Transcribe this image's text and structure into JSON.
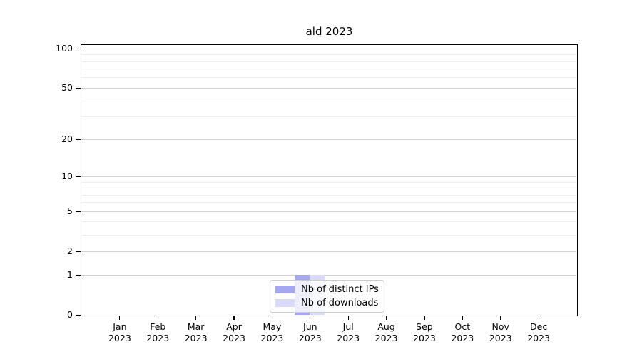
{
  "title": "ald 2023",
  "chart_data": {
    "type": "bar",
    "title": "ald 2023",
    "xlabel": "",
    "ylabel": "",
    "yscale": "symlog (log10(1+v))",
    "ylim": [
      0,
      110
    ],
    "grid": true,
    "legend_position": "lower center",
    "yticks": [
      0,
      1,
      2,
      5,
      10,
      20,
      50,
      100
    ],
    "yticks_minor": [
      3,
      4,
      6,
      7,
      8,
      9,
      30,
      40,
      60,
      70,
      80,
      90
    ],
    "xticklabels": [
      [
        "Jan",
        "2023"
      ],
      [
        "Feb",
        "2023"
      ],
      [
        "Mar",
        "2023"
      ],
      [
        "Apr",
        "2023"
      ],
      [
        "May",
        "2023"
      ],
      [
        "Jun",
        "2023"
      ],
      [
        "Jul",
        "2023"
      ],
      [
        "Aug",
        "2023"
      ],
      [
        "Sep",
        "2023"
      ],
      [
        "Oct",
        "2023"
      ],
      [
        "Nov",
        "2023"
      ],
      [
        "Dec",
        "2023"
      ]
    ],
    "series": [
      {
        "name": "Nb of distinct IPs",
        "color": "#a5a7f0",
        "values": [
          0,
          0,
          0,
          0,
          0,
          1,
          0,
          0,
          0,
          0,
          0,
          0
        ]
      },
      {
        "name": "Nb of downloads",
        "color": "#d8daf8",
        "values": [
          0,
          0,
          0,
          0,
          0,
          1,
          0,
          0,
          0,
          0,
          0,
          0
        ]
      }
    ]
  },
  "colors": {
    "background": "#ffffff",
    "spine": "#000000",
    "grid_major": "#d2d2d2",
    "grid_minor": "#ededed",
    "text": "#000000",
    "legend_border": "#cccccc",
    "legend_background": "rgba(255,255,255,0.8)"
  }
}
